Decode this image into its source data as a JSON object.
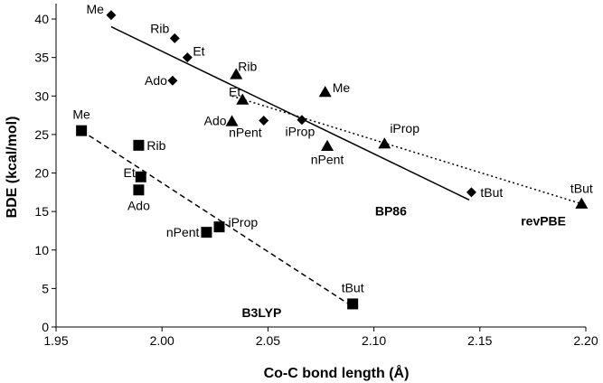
{
  "chart_data": {
    "type": "scatter",
    "xlabel": "Co-C bond length (Å)",
    "ylabel": "BDE (kcal/mol)",
    "xlim": [
      1.95,
      2.2
    ],
    "ylim": [
      0,
      42
    ],
    "x_ticks": [
      "1.95",
      "2.00",
      "2.05",
      "2.10",
      "2.15",
      "2.20"
    ],
    "y_ticks": [
      "0",
      "5",
      "10",
      "15",
      "20",
      "25",
      "30",
      "35",
      "40"
    ],
    "grid": false,
    "legend": "none",
    "series": [
      {
        "name": "BP86",
        "marker": "diamond",
        "line_style": "solid",
        "fit_line": {
          "x": [
            1.976,
            2.145
          ],
          "y": [
            39.0,
            16.5
          ]
        },
        "points": [
          {
            "label": "Me",
            "x": 1.976,
            "y": 40.5
          },
          {
            "label": "Rib",
            "x": 2.006,
            "y": 37.5
          },
          {
            "label": "Et",
            "x": 2.012,
            "y": 35.0
          },
          {
            "label": "Ado",
            "x": 2.005,
            "y": 32.0
          },
          {
            "label": "nPent",
            "x": 2.048,
            "y": 26.8
          },
          {
            "label": "iProp",
            "x": 2.066,
            "y": 26.9
          },
          {
            "label": "tBut",
            "x": 2.146,
            "y": 17.5
          }
        ]
      },
      {
        "name": "revPBE",
        "marker": "triangle",
        "line_style": "dotted",
        "fit_line": {
          "x": [
            2.033,
            2.198
          ],
          "y": [
            30.0,
            16.0
          ]
        },
        "points": [
          {
            "label": "Rib",
            "x": 2.035,
            "y": 32.8
          },
          {
            "label": "Me",
            "x": 2.077,
            "y": 30.5
          },
          {
            "label": "Et",
            "x": 2.038,
            "y": 29.5
          },
          {
            "label": "Ado",
            "x": 2.033,
            "y": 26.7
          },
          {
            "label": "nPent",
            "x": 2.078,
            "y": 23.5
          },
          {
            "label": "iProp",
            "x": 2.105,
            "y": 23.8
          },
          {
            "label": "tBut",
            "x": 2.198,
            "y": 16.0
          }
        ]
      },
      {
        "name": "B3LYP",
        "marker": "square",
        "line_style": "dashed",
        "fit_line": {
          "x": [
            1.962,
            2.088
          ],
          "y": [
            25.5,
            3.0
          ]
        },
        "points": [
          {
            "label": "Me",
            "x": 1.962,
            "y": 25.5
          },
          {
            "label": "Rib",
            "x": 1.989,
            "y": 23.6
          },
          {
            "label": "Et",
            "x": 1.99,
            "y": 19.5
          },
          {
            "label": "Ado",
            "x": 1.989,
            "y": 17.8
          },
          {
            "label": "nPent",
            "x": 2.021,
            "y": 12.3
          },
          {
            "label": "iProp",
            "x": 2.027,
            "y": 13.0
          },
          {
            "label": "tBut",
            "x": 2.09,
            "y": 3.0
          }
        ]
      }
    ]
  }
}
